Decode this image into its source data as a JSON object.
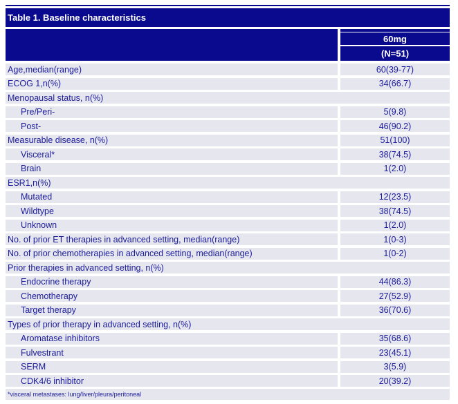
{
  "page": {
    "title_bar": "Table 1. Baseline characteristics",
    "column_header": {
      "dose": "60mg",
      "n": "(N=51)"
    },
    "rows": [
      {
        "type": "data",
        "indent": false,
        "label": "Age,median(range)",
        "value": "60(39-77)"
      },
      {
        "type": "data",
        "indent": false,
        "label": "ECOG 1,n(%)",
        "value": "34(66.7)"
      },
      {
        "type": "section",
        "label": "Menopausal status, n(%)"
      },
      {
        "type": "data",
        "indent": true,
        "label": "Pre/Peri-",
        "value": "5(9.8)"
      },
      {
        "type": "data",
        "indent": true,
        "label": "Post-",
        "value": "46(90.2)"
      },
      {
        "type": "data",
        "indent": false,
        "label": "Measurable disease, n(%)",
        "value": "51(100)"
      },
      {
        "type": "data",
        "indent": true,
        "label": "Visceral*",
        "value": "38(74.5)"
      },
      {
        "type": "data",
        "indent": true,
        "label": "Brain",
        "value": "1(2.0)"
      },
      {
        "type": "section",
        "label": "ESR1,n(%)"
      },
      {
        "type": "data",
        "indent": true,
        "label": "Mutated",
        "value": "12(23.5)"
      },
      {
        "type": "data",
        "indent": true,
        "label": "Wildtype",
        "value": "38(74.5)"
      },
      {
        "type": "data",
        "indent": true,
        "label": "Unknown",
        "value": "1(2.0)"
      },
      {
        "type": "data",
        "indent": false,
        "label": "No. of prior ET therapies in advanced setting, median(range)",
        "value": "1(0-3)"
      },
      {
        "type": "data",
        "indent": false,
        "label": "No. of prior chemotherapies in advanced setting, median(range)",
        "value": "1(0-2)"
      },
      {
        "type": "section",
        "label": "Prior therapies in advanced setting, n(%)"
      },
      {
        "type": "data",
        "indent": true,
        "label": "Endocrine therapy",
        "value": "44(86.3)"
      },
      {
        "type": "data",
        "indent": true,
        "label": "Chemotherapy",
        "value": "27(52.9)"
      },
      {
        "type": "data",
        "indent": true,
        "label": "Target therapy",
        "value": "36(70.6)"
      },
      {
        "type": "section",
        "label": "Types of prior therapy in advanced setting, n(%)"
      },
      {
        "type": "data",
        "indent": true,
        "label": "Aromatase inhibitors",
        "value": "35(68.6)"
      },
      {
        "type": "data",
        "indent": true,
        "label": "Fulvestrant",
        "value": "23(45.1)"
      },
      {
        "type": "data",
        "indent": true,
        "label": "SERM",
        "value": "3(5.9)"
      },
      {
        "type": "data",
        "indent": true,
        "label": "CDK4/6 inhibitor",
        "value": "20(39.2)"
      }
    ],
    "footnote": "*visceral metastases: lung/liver/pleura/peritoneal",
    "colors": {
      "navy": "#0a0a8e",
      "row_bg": "#e6e6ef",
      "row_text": "#1b1b99",
      "header_text": "#ffffff"
    }
  }
}
